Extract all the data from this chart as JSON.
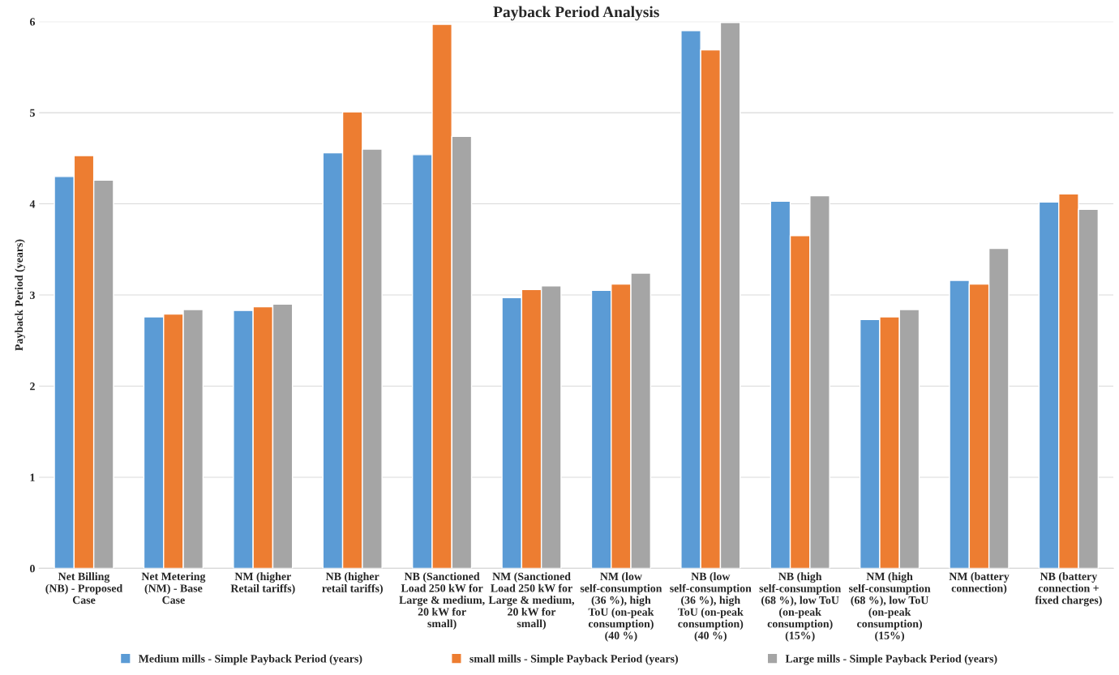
{
  "chart_data": {
    "type": "bar",
    "title": "Payback Period Analysis",
    "ylabel": "Payback Period (years)",
    "categories": [
      "Net Billing (NB) - Proposed Case",
      "Net Metering (NM) - Base Case",
      "NM (higher Retail tariffs)",
      "NB (higher retail tariffs)",
      "NB (Sanctioned Load 250 kW for Large & medium, 20 kW for small)",
      "NM (Sanctioned Load 250 kW for Large & medium, 20 kW for small)",
      "NM (low self-consumption (36 %), high ToU (on-peak consumption) (40 %)",
      "NB (low self-consumption (36 %), high ToU (on-peak consumption) (40 %)",
      "NB (high self-consumption (68 %), low ToU (on-peak consumption) (15%)",
      "NM (high self-consumption (68 %), low ToU (on-peak consumption) (15%)",
      "NM (battery connection)",
      "NB (battery connection + fixed charges)"
    ],
    "series": [
      {
        "name": "Medium mills - Simple Payback Period (years)",
        "color": "#5b9bd5",
        "values": [
          4.3,
          2.76,
          2.83,
          4.56,
          4.54,
          2.97,
          3.05,
          5.9,
          4.03,
          2.73,
          3.16,
          4.02
        ]
      },
      {
        "name": "small mills - Simple Payback Period (years)",
        "color": "#ed7d31",
        "values": [
          4.53,
          2.79,
          2.87,
          5.01,
          5.97,
          3.06,
          3.12,
          5.69,
          3.65,
          2.76,
          3.12,
          4.11
        ]
      },
      {
        "name": "Large mills - Simple Payback Period (years)",
        "color": "#a5a5a5",
        "values": [
          4.26,
          2.84,
          2.9,
          4.6,
          4.74,
          3.1,
          3.24,
          5.99,
          4.09,
          2.84,
          3.51,
          3.94
        ]
      }
    ],
    "ylim": [
      0,
      6
    ],
    "yticks": [
      0,
      1,
      2,
      3,
      4,
      5,
      6
    ],
    "grid": "y",
    "legend": "bottom"
  }
}
